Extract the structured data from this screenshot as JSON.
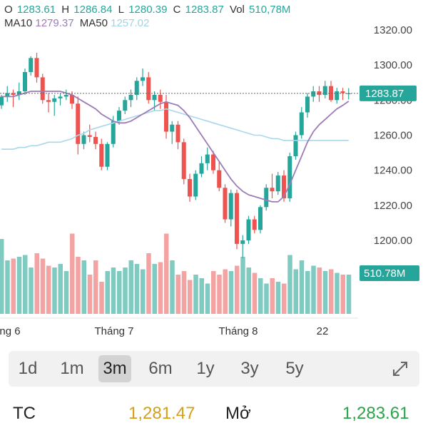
{
  "header": {
    "open_label": "O",
    "open": "1283.61",
    "high_label": "H",
    "high": "1286.84",
    "low_label": "L",
    "low": "1280.39",
    "close_label": "C",
    "close": "1283.87",
    "vol_label": "Vol",
    "vol": "510,78M",
    "ma10_label": "MA10",
    "ma10": "1279.37",
    "ma50_label": "MA50",
    "ma50": "1257.02"
  },
  "colors": {
    "up": "#26a69a",
    "down": "#ef5350",
    "ma10": "#9c7bb8",
    "ma50": "#a8d8ea"
  },
  "chart_data": {
    "type": "candlestick",
    "y_axis": {
      "ticks": [
        "1320.00",
        "1300.00",
        "1280.00",
        "1260.00",
        "1240.00",
        "1220.00",
        "1200.00"
      ],
      "min": 1180,
      "max": 1330
    },
    "x_axis": {
      "labels": [
        "ng 6",
        "Tháng 7",
        "Tháng 8",
        "22"
      ]
    },
    "last_price_label": "1283.87",
    "volume_label": "510.78M",
    "candles": [
      [
        1277,
        1283,
        1275,
        1282,
        210
      ],
      [
        1282,
        1288,
        1279,
        1284,
        150
      ],
      [
        1284,
        1286,
        1276,
        1283,
        155
      ],
      [
        1283,
        1290,
        1280,
        1285,
        160
      ],
      [
        1285,
        1298,
        1283,
        1296,
        165
      ],
      [
        1296,
        1305,
        1294,
        1304,
        130
      ],
      [
        1304,
        1307,
        1290,
        1293,
        170
      ],
      [
        1293,
        1295,
        1278,
        1280,
        155
      ],
      [
        1280,
        1284,
        1273,
        1279,
        135
      ],
      [
        1279,
        1283,
        1271,
        1281,
        130
      ],
      [
        1281,
        1284,
        1277,
        1282,
        140
      ],
      [
        1282,
        1286,
        1280,
        1283,
        120
      ],
      [
        1283,
        1285,
        1275,
        1278,
        225
      ],
      [
        1278,
        1282,
        1249,
        1255,
        160
      ],
      [
        1255,
        1262,
        1252,
        1260,
        150
      ],
      [
        1260,
        1266,
        1256,
        1259,
        110
      ],
      [
        1259,
        1262,
        1252,
        1255,
        150
      ],
      [
        1255,
        1258,
        1240,
        1242,
        90
      ],
      [
        1242,
        1256,
        1240,
        1255,
        120
      ],
      [
        1255,
        1271,
        1253,
        1268,
        130
      ],
      [
        1268,
        1276,
        1266,
        1274,
        120
      ],
      [
        1274,
        1282,
        1272,
        1280,
        130
      ],
      [
        1280,
        1286,
        1276,
        1283,
        150
      ],
      [
        1283,
        1293,
        1280,
        1291,
        140
      ],
      [
        1291,
        1298,
        1288,
        1293,
        125
      ],
      [
        1293,
        1296,
        1278,
        1280,
        170
      ],
      [
        1280,
        1285,
        1274,
        1283,
        140
      ],
      [
        1283,
        1286,
        1275,
        1279,
        145
      ],
      [
        1279,
        1283,
        1258,
        1262,
        225
      ],
      [
        1262,
        1268,
        1255,
        1266,
        150
      ],
      [
        1266,
        1268,
        1252,
        1256,
        110
      ],
      [
        1256,
        1258,
        1232,
        1235,
        120
      ],
      [
        1235,
        1238,
        1222,
        1225,
        95
      ],
      [
        1225,
        1240,
        1223,
        1238,
        110
      ],
      [
        1238,
        1248,
        1236,
        1244,
        100
      ],
      [
        1244,
        1253,
        1240,
        1249,
        85
      ],
      [
        1249,
        1251,
        1238,
        1240,
        120
      ],
      [
        1240,
        1245,
        1228,
        1230,
        110
      ],
      [
        1230,
        1232,
        1210,
        1212,
        125
      ],
      [
        1212,
        1229,
        1208,
        1227,
        120
      ],
      [
        1227,
        1229,
        1195,
        1198,
        135
      ],
      [
        1198,
        1203,
        1190,
        1200,
        160
      ],
      [
        1200,
        1214,
        1198,
        1212,
        130
      ],
      [
        1212,
        1214,
        1204,
        1206,
        115
      ],
      [
        1206,
        1220,
        1204,
        1219,
        100
      ],
      [
        1219,
        1232,
        1217,
        1230,
        85
      ],
      [
        1230,
        1238,
        1224,
        1228,
        100
      ],
      [
        1228,
        1239,
        1226,
        1237,
        90
      ],
      [
        1237,
        1240,
        1222,
        1224,
        85
      ],
      [
        1224,
        1250,
        1222,
        1248,
        165
      ],
      [
        1248,
        1262,
        1246,
        1260,
        125
      ],
      [
        1260,
        1276,
        1258,
        1273,
        150
      ],
      [
        1273,
        1284,
        1270,
        1282,
        120
      ],
      [
        1282,
        1288,
        1279,
        1285,
        135
      ],
      [
        1285,
        1288,
        1279,
        1283,
        130
      ],
      [
        1283,
        1291,
        1281,
        1288,
        120
      ],
      [
        1288,
        1291,
        1279,
        1280,
        125
      ],
      [
        1280,
        1287,
        1278,
        1285,
        115
      ],
      [
        1285,
        1287,
        1280,
        1284,
        110
      ],
      [
        1283.61,
        1286.84,
        1280.39,
        1283.87,
        110
      ]
    ],
    "ma10": [
      1282,
      1282,
      1282,
      1283,
      1284,
      1285,
      1285,
      1285,
      1285,
      1285,
      1285,
      1284,
      1283,
      1281,
      1279,
      1277,
      1275,
      1272,
      1270,
      1268,
      1267,
      1267,
      1268,
      1270,
      1272,
      1274,
      1276,
      1278,
      1279,
      1278,
      1277,
      1274,
      1270,
      1265,
      1260,
      1255,
      1250,
      1245,
      1240,
      1235,
      1231,
      1228,
      1226,
      1225,
      1224,
      1223,
      1222,
      1222,
      1225,
      1232,
      1240,
      1248,
      1256,
      1262,
      1266,
      1269,
      1272,
      1275,
      1277,
      1279.37
    ],
    "ma50": [
      1252,
      1252,
      1252,
      1253,
      1253,
      1254,
      1254,
      1255,
      1256,
      1256,
      1256,
      1257,
      1258,
      1260,
      1261,
      1263,
      1264,
      1265,
      1266,
      1267,
      1268,
      1269,
      1270,
      1271,
      1272,
      1273,
      1274,
      1274,
      1275,
      1274,
      1273,
      1272,
      1271,
      1270,
      1269,
      1268,
      1267,
      1266,
      1265,
      1264,
      1263,
      1262,
      1261,
      1260,
      1260,
      1259,
      1258,
      1258,
      1257,
      1257,
      1257,
      1257,
      1257,
      1257,
      1257,
      1257,
      1257,
      1257,
      1257,
      1257.02
    ]
  },
  "tabs": [
    {
      "label": "1d"
    },
    {
      "label": "1m"
    },
    {
      "label": "3m",
      "active": true
    },
    {
      "label": "6m"
    },
    {
      "label": "1y"
    },
    {
      "label": "3y"
    },
    {
      "label": "5y"
    }
  ],
  "stats": {
    "tc_label": "TC",
    "tc_value": "1,281.47",
    "open_label": "Mở",
    "open_value": "1,283.61"
  }
}
